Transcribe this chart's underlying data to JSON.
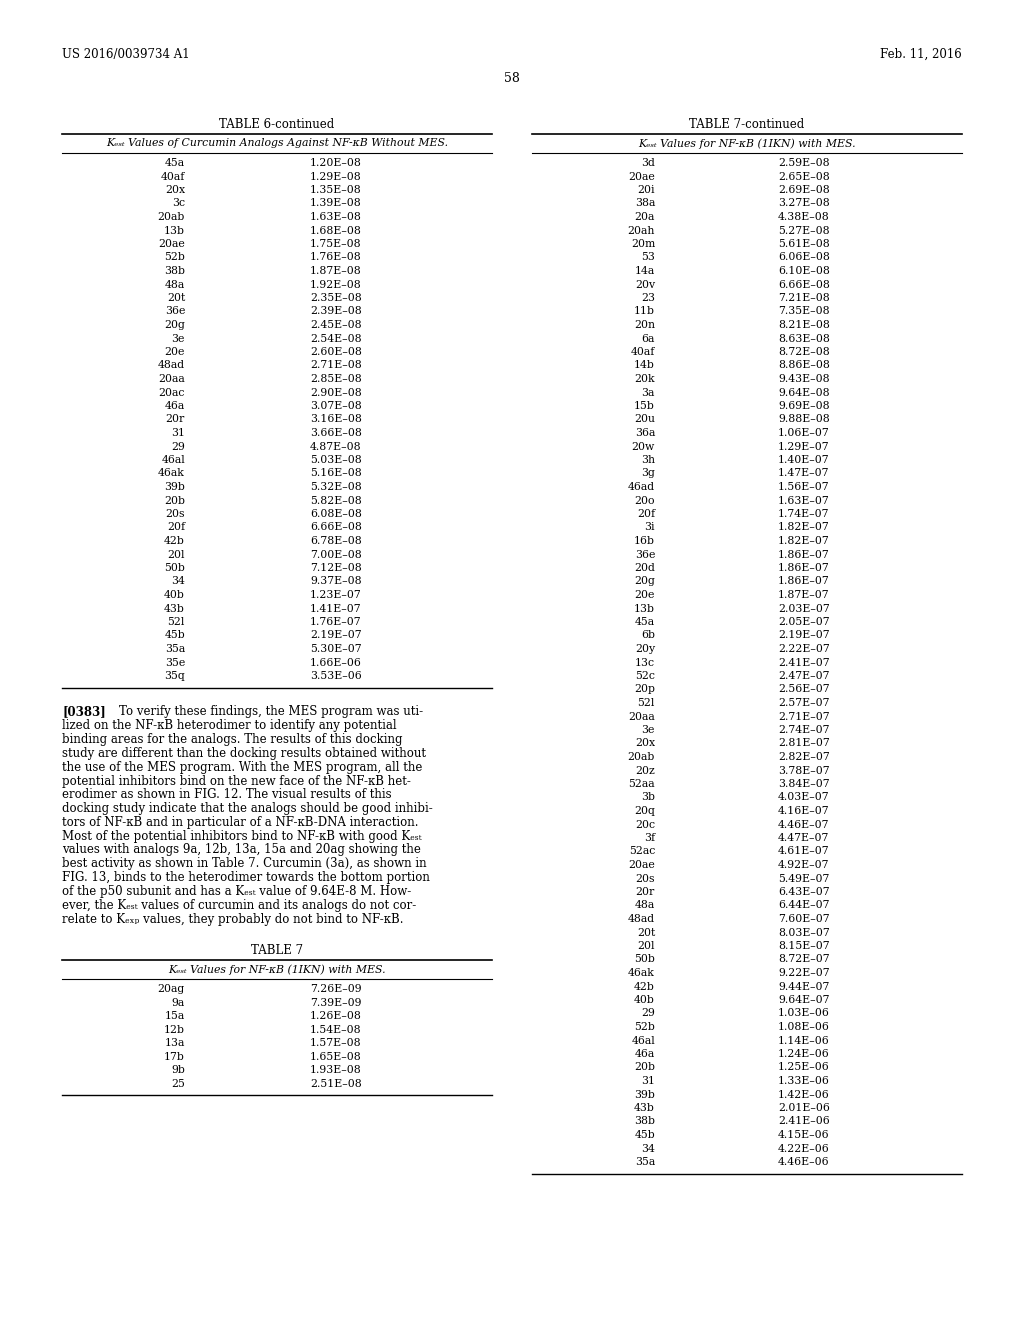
{
  "header_left": "US 2016/0039734 A1",
  "header_right": "Feb. 11, 2016",
  "page_number": "58",
  "table6_title": "TABLE 6-continued",
  "table6_subtitle": "Kₑₛₜ Values of Curcumin Analogs Against NF-κB Without MES.",
  "table6_data": [
    [
      "45a",
      "1.20E–08"
    ],
    [
      "40af",
      "1.29E–08"
    ],
    [
      "20x",
      "1.35E–08"
    ],
    [
      "3c",
      "1.39E–08"
    ],
    [
      "20ab",
      "1.63E–08"
    ],
    [
      "13b",
      "1.68E–08"
    ],
    [
      "20ae",
      "1.75E–08"
    ],
    [
      "52b",
      "1.76E–08"
    ],
    [
      "38b",
      "1.87E–08"
    ],
    [
      "48a",
      "1.92E–08"
    ],
    [
      "20t",
      "2.35E–08"
    ],
    [
      "36e",
      "2.39E–08"
    ],
    [
      "20g",
      "2.45E–08"
    ],
    [
      "3e",
      "2.54E–08"
    ],
    [
      "20e",
      "2.60E–08"
    ],
    [
      "48ad",
      "2.71E–08"
    ],
    [
      "20aa",
      "2.85E–08"
    ],
    [
      "20ac",
      "2.90E–08"
    ],
    [
      "46a",
      "3.07E–08"
    ],
    [
      "20r",
      "3.16E–08"
    ],
    [
      "31",
      "3.66E–08"
    ],
    [
      "29",
      "4.87E–08"
    ],
    [
      "46al",
      "5.03E–08"
    ],
    [
      "46ak",
      "5.16E–08"
    ],
    [
      "39b",
      "5.32E–08"
    ],
    [
      "20b",
      "5.82E–08"
    ],
    [
      "20s",
      "6.08E–08"
    ],
    [
      "20f",
      "6.66E–08"
    ],
    [
      "42b",
      "6.78E–08"
    ],
    [
      "20l",
      "7.00E–08"
    ],
    [
      "50b",
      "7.12E–08"
    ],
    [
      "34",
      "9.37E–08"
    ],
    [
      "40b",
      "1.23E–07"
    ],
    [
      "43b",
      "1.41E–07"
    ],
    [
      "52l",
      "1.76E–07"
    ],
    [
      "45b",
      "2.19E–07"
    ],
    [
      "35a",
      "5.30E–07"
    ],
    [
      "35e",
      "1.66E–06"
    ],
    [
      "35q",
      "3.53E–06"
    ]
  ],
  "table7_title": "TABLE 7-continued",
  "table7_subtitle": "Kₑₛₜ Values for NF-κB (1IKN) with MES.",
  "table7_data": [
    [
      "3d",
      "2.59E–08"
    ],
    [
      "20ae",
      "2.65E–08"
    ],
    [
      "20i",
      "2.69E–08"
    ],
    [
      "38a",
      "3.27E–08"
    ],
    [
      "20a",
      "4.38E–08"
    ],
    [
      "20ah",
      "5.27E–08"
    ],
    [
      "20m",
      "5.61E–08"
    ],
    [
      "53",
      "6.06E–08"
    ],
    [
      "14a",
      "6.10E–08"
    ],
    [
      "20v",
      "6.66E–08"
    ],
    [
      "23",
      "7.21E–08"
    ],
    [
      "11b",
      "7.35E–08"
    ],
    [
      "20n",
      "8.21E–08"
    ],
    [
      "6a",
      "8.63E–08"
    ],
    [
      "40af",
      "8.72E–08"
    ],
    [
      "14b",
      "8.86E–08"
    ],
    [
      "20k",
      "9.43E–08"
    ],
    [
      "3a",
      "9.64E–08"
    ],
    [
      "15b",
      "9.69E–08"
    ],
    [
      "20u",
      "9.88E–08"
    ],
    [
      "36a",
      "1.06E–07"
    ],
    [
      "20w",
      "1.29E–07"
    ],
    [
      "3h",
      "1.40E–07"
    ],
    [
      "3g",
      "1.47E–07"
    ],
    [
      "46ad",
      "1.56E–07"
    ],
    [
      "20o",
      "1.63E–07"
    ],
    [
      "20f",
      "1.74E–07"
    ],
    [
      "3i",
      "1.82E–07"
    ],
    [
      "16b",
      "1.82E–07"
    ],
    [
      "36e",
      "1.86E–07"
    ],
    [
      "20d",
      "1.86E–07"
    ],
    [
      "20g",
      "1.86E–07"
    ],
    [
      "20e",
      "1.87E–07"
    ],
    [
      "13b",
      "2.03E–07"
    ],
    [
      "45a",
      "2.05E–07"
    ],
    [
      "6b",
      "2.19E–07"
    ],
    [
      "20y",
      "2.22E–07"
    ],
    [
      "13c",
      "2.41E–07"
    ],
    [
      "52c",
      "2.47E–07"
    ],
    [
      "20p",
      "2.56E–07"
    ],
    [
      "52l",
      "2.57E–07"
    ],
    [
      "20aa",
      "2.71E–07"
    ],
    [
      "3e",
      "2.74E–07"
    ],
    [
      "20x",
      "2.81E–07"
    ],
    [
      "20ab",
      "2.82E–07"
    ],
    [
      "20z",
      "3.78E–07"
    ],
    [
      "52aa",
      "3.84E–07"
    ],
    [
      "3b",
      "4.03E–07"
    ],
    [
      "20q",
      "4.16E–07"
    ],
    [
      "20c",
      "4.46E–07"
    ],
    [
      "3f",
      "4.47E–07"
    ],
    [
      "52ac",
      "4.61E–07"
    ],
    [
      "20ae",
      "4.92E–07"
    ],
    [
      "20s",
      "5.49E–07"
    ],
    [
      "20r",
      "6.43E–07"
    ],
    [
      "48a",
      "6.44E–07"
    ],
    [
      "48ad",
      "7.60E–07"
    ],
    [
      "20t",
      "8.03E–07"
    ],
    [
      "20l",
      "8.15E–07"
    ],
    [
      "50b",
      "8.72E–07"
    ],
    [
      "46ak",
      "9.22E–07"
    ],
    [
      "42b",
      "9.44E–07"
    ],
    [
      "40b",
      "9.64E–07"
    ],
    [
      "29",
      "1.03E–06"
    ],
    [
      "52b",
      "1.08E–06"
    ],
    [
      "46al",
      "1.14E–06"
    ],
    [
      "46a",
      "1.24E–06"
    ],
    [
      "20b",
      "1.25E–06"
    ],
    [
      "31",
      "1.33E–06"
    ],
    [
      "39b",
      "1.42E–06"
    ],
    [
      "43b",
      "2.01E–06"
    ],
    [
      "38b",
      "2.41E–06"
    ],
    [
      "45b",
      "4.15E–06"
    ],
    [
      "34",
      "4.22E–06"
    ],
    [
      "35a",
      "4.46E–06"
    ]
  ],
  "table7_start_title": "TABLE 7",
  "table7_start_subtitle": "Kₑₛₜ Values for NF-κB (1IKN) with MES.",
  "table7_start_data": [
    [
      "20ag",
      "7.26E–09"
    ],
    [
      "9a",
      "7.39E–09"
    ],
    [
      "15a",
      "1.26E–08"
    ],
    [
      "12b",
      "1.54E–08"
    ],
    [
      "13a",
      "1.57E–08"
    ],
    [
      "17b",
      "1.65E–08"
    ],
    [
      "9b",
      "1.93E–08"
    ],
    [
      "25",
      "2.51E–08"
    ]
  ],
  "body_text_lines": [
    "[0383]    To verify these findings, the MES program was uti-",
    "lized on the NF-κB heterodimer to identify any potential",
    "binding areas for the analogs. The results of this docking",
    "study are different than the docking results obtained without",
    "the use of the MES program. With the MES program, all the",
    "potential inhibitors bind on the new face of the NF-κB het-",
    "erodimer as shown in FIG. 12. The visual results of this",
    "docking study indicate that the analogs should be good inhibi-",
    "tors of NF-κB and in particular of a NF-κB-DNA interaction.",
    "Most of the potential inhibitors bind to NF-κB with good Kₑₛₜ",
    "values with analogs 9a, 12b, 13a, 15a and 20ag showing the",
    "best activity as shown in Table 7. Curcumin (3a), as shown in",
    "FIG. 13, binds to the heterodimer towards the bottom portion",
    "of the p50 subunit and has a Kₑₛₜ value of 9.64E-8 M. How-",
    "ever, the Kₑₛₜ values of curcumin and its analogs do not cor-",
    "relate to Kₑₓₚ values, they probably do not bind to NF-κB."
  ]
}
